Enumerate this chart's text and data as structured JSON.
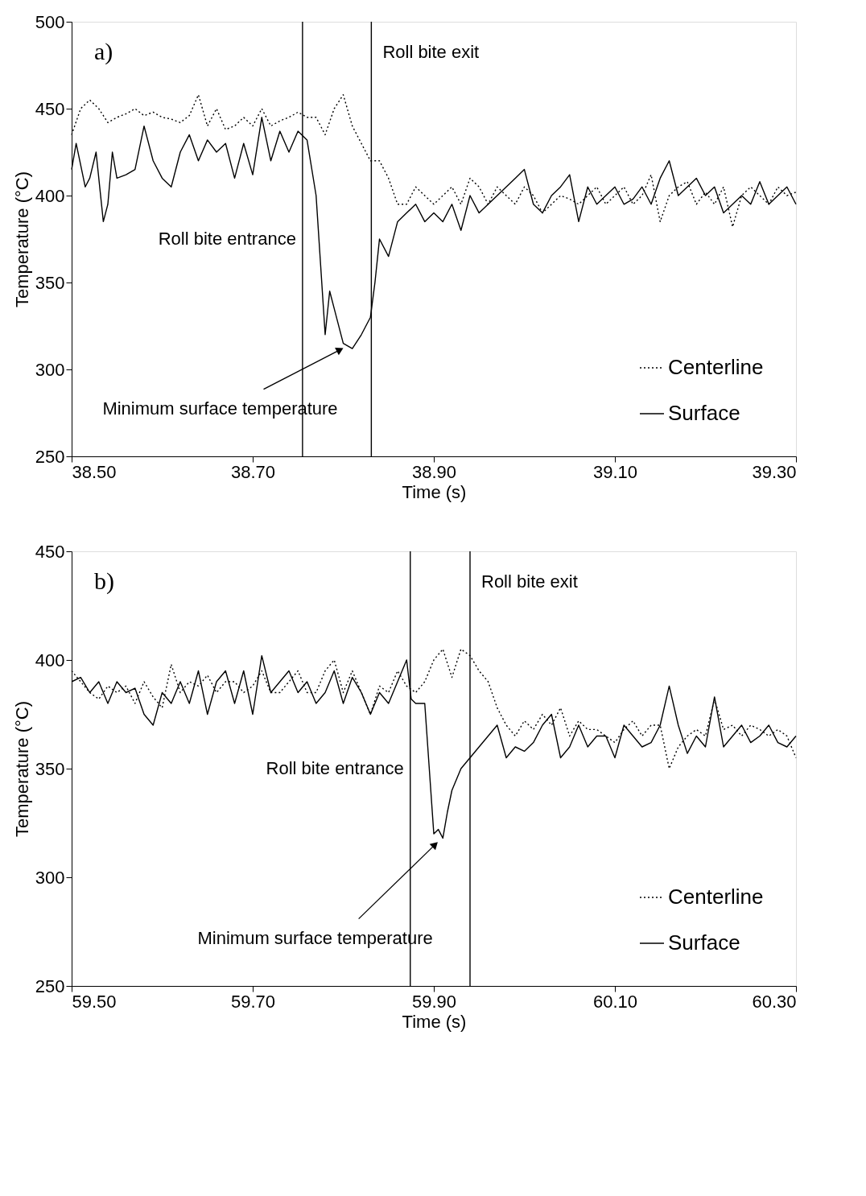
{
  "chart_data": [
    {
      "type": "line",
      "xlabel": "Time (s)",
      "ylabel": "Temperature (°C)",
      "xlim": [
        38.5,
        39.3
      ],
      "ylim": [
        250,
        500
      ],
      "xticks": [
        {
          "value": 38.5,
          "label": "38.50"
        },
        {
          "value": 38.7,
          "label": "38.70"
        },
        {
          "value": 38.9,
          "label": "38.90"
        },
        {
          "value": 39.1,
          "label": "39.10"
        },
        {
          "value": 39.3,
          "label": "39.30"
        }
      ],
      "yticks": [
        250,
        300,
        350,
        400,
        450,
        500
      ],
      "grid": false,
      "legend": "bottom right",
      "series": [
        {
          "name": "Centerline",
          "color": "#000000",
          "line_style": "dotted",
          "x": [
            38.5,
            38.51,
            38.52,
            38.53,
            38.54,
            38.55,
            38.56,
            38.57,
            38.58,
            38.59,
            38.6,
            38.61,
            38.62,
            38.63,
            38.64,
            38.65,
            38.66,
            38.67,
            38.68,
            38.69,
            38.7,
            38.71,
            38.72,
            38.73,
            38.74,
            38.75,
            38.76,
            38.77,
            38.78,
            38.79,
            38.8,
            38.81,
            38.82,
            38.83,
            38.84,
            38.85,
            38.86,
            38.87,
            38.88,
            38.89,
            38.9,
            38.91,
            38.92,
            38.93,
            38.94,
            38.95,
            38.96,
            38.97,
            38.98,
            38.99,
            39.0,
            39.01,
            39.02,
            39.03,
            39.04,
            39.05,
            39.06,
            39.07,
            39.08,
            39.09,
            39.1,
            39.11,
            39.12,
            39.13,
            39.14,
            39.15,
            39.16,
            39.17,
            39.18,
            39.19,
            39.2,
            39.21,
            39.22,
            39.23,
            39.24,
            39.25,
            39.26,
            39.27,
            39.28,
            39.29,
            39.3
          ],
          "values": [
            435,
            450,
            455,
            450,
            442,
            445,
            447,
            450,
            446,
            448,
            445,
            444,
            442,
            446,
            458,
            440,
            450,
            438,
            440,
            445,
            440,
            450,
            440,
            443,
            445,
            448,
            445,
            445,
            435,
            450,
            458,
            440,
            430,
            420,
            420,
            410,
            395,
            395,
            405,
            400,
            395,
            400,
            405,
            395,
            410,
            405,
            395,
            405,
            400,
            395,
            405,
            400,
            390,
            395,
            400,
            398,
            395,
            400,
            405,
            395,
            400,
            405,
            395,
            400,
            412,
            385,
            400,
            405,
            408,
            395,
            402,
            395,
            405,
            382,
            400,
            405,
            400,
            395,
            405,
            400,
            402
          ]
        },
        {
          "name": "Surface",
          "color": "#000000",
          "line_style": "solid",
          "x": [
            38.5,
            38.505,
            38.515,
            38.52,
            38.527,
            38.535,
            38.54,
            38.545,
            38.55,
            38.56,
            38.57,
            38.58,
            38.59,
            38.6,
            38.61,
            38.62,
            38.63,
            38.64,
            38.65,
            38.66,
            38.67,
            38.68,
            38.69,
            38.7,
            38.71,
            38.72,
            38.73,
            38.74,
            38.75,
            38.76,
            38.77,
            38.78,
            38.785,
            38.79,
            38.8,
            38.81,
            38.82,
            38.83,
            38.835,
            38.84,
            38.85,
            38.86,
            38.87,
            38.88,
            38.89,
            38.9,
            38.91,
            38.92,
            38.93,
            38.94,
            38.95,
            38.96,
            38.97,
            38.98,
            38.99,
            39.0,
            39.01,
            39.02,
            39.03,
            39.04,
            39.05,
            39.06,
            39.07,
            39.08,
            39.09,
            39.1,
            39.11,
            39.12,
            39.13,
            39.14,
            39.15,
            39.16,
            39.17,
            39.18,
            39.19,
            39.2,
            39.21,
            39.22,
            39.23,
            39.24,
            39.25,
            39.26,
            39.27,
            39.28,
            39.29,
            39.3
          ],
          "values": [
            415,
            430,
            405,
            410,
            425,
            385,
            395,
            425,
            410,
            412,
            415,
            440,
            420,
            410,
            405,
            425,
            435,
            420,
            432,
            425,
            430,
            410,
            430,
            412,
            445,
            420,
            437,
            425,
            437,
            432,
            400,
            320,
            345,
            335,
            315,
            312,
            320,
            330,
            350,
            375,
            365,
            385,
            390,
            395,
            385,
            390,
            385,
            395,
            380,
            400,
            390,
            395,
            400,
            405,
            410,
            415,
            395,
            390,
            400,
            405,
            412,
            385,
            405,
            395,
            400,
            405,
            395,
            398,
            405,
            395,
            410,
            420,
            400,
            405,
            410,
            400,
            405,
            390,
            395,
            400,
            395,
            408,
            395,
            400,
            405,
            395
          ]
        }
      ],
      "ref_lines": [
        {
          "axis": "x",
          "value": 38.755,
          "label": "Roll bite entrance"
        },
        {
          "axis": "x",
          "value": 38.831,
          "label": "Roll bite exit"
        }
      ],
      "annotations": [
        "a)",
        {
          "text": "Minimum surface temperature",
          "x": 38.8,
          "y": 315
        }
      ]
    },
    {
      "type": "line",
      "xlabel": "Time (s)",
      "ylabel": "Temperature (°C)",
      "xlim": [
        59.5,
        60.3
      ],
      "ylim": [
        250,
        450
      ],
      "xticks": [
        {
          "value": 59.5,
          "label": "59.50"
        },
        {
          "value": 59.7,
          "label": "59.70"
        },
        {
          "value": 59.9,
          "label": "59.90"
        },
        {
          "value": 60.1,
          "label": "60.10"
        },
        {
          "value": 60.3,
          "label": "60.30"
        }
      ],
      "yticks": [
        250,
        300,
        350,
        400,
        450
      ],
      "grid": false,
      "legend": "bottom right",
      "series": [
        {
          "name": "Centerline",
          "color": "#000000",
          "line_style": "dotted",
          "x": [
            59.5,
            59.51,
            59.52,
            59.53,
            59.54,
            59.55,
            59.56,
            59.57,
            59.58,
            59.59,
            59.6,
            59.61,
            59.62,
            59.63,
            59.64,
            59.65,
            59.66,
            59.67,
            59.68,
            59.69,
            59.7,
            59.71,
            59.72,
            59.73,
            59.74,
            59.75,
            59.76,
            59.77,
            59.78,
            59.79,
            59.8,
            59.81,
            59.82,
            59.83,
            59.84,
            59.85,
            59.86,
            59.87,
            59.88,
            59.89,
            59.9,
            59.91,
            59.92,
            59.93,
            59.94,
            59.95,
            59.96,
            59.97,
            59.98,
            59.99,
            60.0,
            60.01,
            60.02,
            60.03,
            60.04,
            60.05,
            60.06,
            60.07,
            60.08,
            60.09,
            60.1,
            60.11,
            60.12,
            60.13,
            60.14,
            60.15,
            60.16,
            60.17,
            60.18,
            60.19,
            60.2,
            60.21,
            60.22,
            60.23,
            60.24,
            60.25,
            60.26,
            60.27,
            60.28,
            60.29,
            60.3
          ],
          "values": [
            395,
            390,
            385,
            382,
            388,
            385,
            388,
            380,
            390,
            383,
            378,
            398,
            385,
            390,
            388,
            393,
            385,
            390,
            390,
            385,
            388,
            395,
            385,
            385,
            390,
            395,
            385,
            385,
            395,
            400,
            385,
            395,
            385,
            375,
            388,
            385,
            395,
            388,
            385,
            390,
            400,
            405,
            392,
            405,
            402,
            395,
            390,
            378,
            370,
            365,
            372,
            368,
            375,
            370,
            378,
            365,
            372,
            368,
            368,
            365,
            362,
            368,
            372,
            365,
            370,
            370,
            350,
            360,
            365,
            368,
            365,
            382,
            368,
            370,
            365,
            370,
            368,
            365,
            368,
            365,
            355
          ]
        },
        {
          "name": "Surface",
          "color": "#000000",
          "line_style": "solid",
          "x": [
            59.5,
            59.51,
            59.52,
            59.53,
            59.54,
            59.55,
            59.56,
            59.57,
            59.58,
            59.59,
            59.6,
            59.61,
            59.62,
            59.63,
            59.64,
            59.65,
            59.66,
            59.67,
            59.68,
            59.69,
            59.7,
            59.71,
            59.72,
            59.73,
            59.74,
            59.75,
            59.76,
            59.77,
            59.78,
            59.79,
            59.8,
            59.81,
            59.82,
            59.83,
            59.84,
            59.85,
            59.86,
            59.87,
            59.875,
            59.88,
            59.89,
            59.895,
            59.9,
            59.905,
            59.91,
            59.915,
            59.92,
            59.93,
            59.94,
            59.95,
            59.96,
            59.97,
            59.98,
            59.99,
            60.0,
            60.01,
            60.02,
            60.03,
            60.04,
            60.05,
            60.06,
            60.07,
            60.08,
            60.09,
            60.1,
            60.11,
            60.12,
            60.13,
            60.14,
            60.15,
            60.16,
            60.17,
            60.18,
            60.19,
            60.2,
            60.21,
            60.22,
            60.23,
            60.24,
            60.25,
            60.26,
            60.27,
            60.28,
            60.29,
            60.3
          ],
          "values": [
            390,
            392,
            385,
            390,
            380,
            390,
            385,
            387,
            375,
            370,
            385,
            380,
            390,
            380,
            395,
            375,
            390,
            395,
            380,
            395,
            375,
            402,
            385,
            390,
            395,
            385,
            390,
            380,
            385,
            395,
            380,
            392,
            385,
            375,
            385,
            380,
            390,
            400,
            382,
            380,
            380,
            350,
            320,
            322,
            318,
            330,
            340,
            350,
            355,
            360,
            365,
            370,
            355,
            360,
            358,
            362,
            370,
            375,
            355,
            360,
            370,
            360,
            365,
            365,
            355,
            370,
            365,
            360,
            362,
            370,
            388,
            370,
            357,
            365,
            360,
            383,
            360,
            365,
            370,
            362,
            365,
            370,
            362,
            360,
            365
          ]
        }
      ],
      "ref_lines": [
        {
          "axis": "x",
          "value": 59.874,
          "label": "Roll bite entrance"
        },
        {
          "axis": "x",
          "value": 59.94,
          "label": "Roll bite exit"
        }
      ],
      "annotations": [
        "b)",
        {
          "text": "Minimum surface temperature",
          "x": 59.905,
          "y": 318
        }
      ]
    }
  ]
}
